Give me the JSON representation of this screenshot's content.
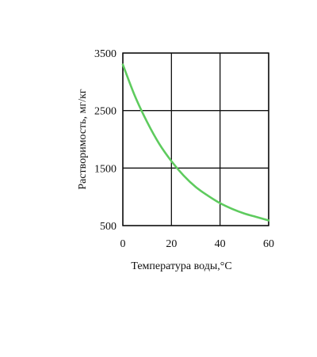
{
  "chart_data": {
    "type": "line",
    "title": "",
    "xlabel": "Температура воды,°C",
    "ylabel": "Растворимость, мг/кг",
    "xlim": [
      0,
      60
    ],
    "ylim": [
      500,
      3500
    ],
    "xticks": [
      0,
      20,
      40,
      60
    ],
    "yticks": [
      500,
      1500,
      2500,
      3500
    ],
    "xtick_labels": [
      "0",
      "20",
      "40",
      "60"
    ],
    "ytick_labels": [
      "500",
      "1500",
      "2500",
      "3500"
    ],
    "grid": true,
    "legend": "none",
    "series": [
      {
        "color": "#5ecb5e",
        "x": [
          0,
          5,
          10,
          15,
          20,
          25,
          30,
          35,
          40,
          45,
          50,
          55,
          60
        ],
        "y": [
          3300,
          2750,
          2300,
          1920,
          1620,
          1370,
          1170,
          1020,
          890,
          790,
          710,
          650,
          590
        ]
      }
    ]
  }
}
